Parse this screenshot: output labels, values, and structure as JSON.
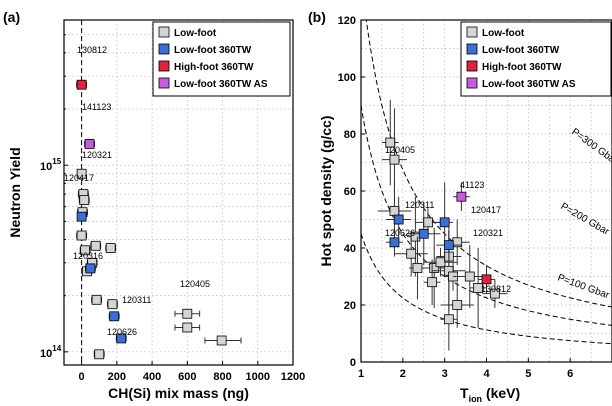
{
  "colors": {
    "Low-foot": "#d4d4d4",
    "Low-foot 360TW": "#3a6fd8",
    "High-foot 360TW": "#e0213f",
    "Low-foot 360TW AS": "#c85ce0"
  },
  "chart_data": [
    {
      "panel": "(a)",
      "type": "scatter",
      "xlabel": "CH(Si) mix mass (ng)",
      "ylabel": "Neutron Yield",
      "xlim": [
        -100,
        1200
      ],
      "ylim": [
        85000000000000.0,
        6000000000000000.0
      ],
      "yscale": "log",
      "x_ticks": [
        "0",
        "200",
        "400",
        "600",
        "800",
        "1000",
        "1200"
      ],
      "y_ticks": [
        {
          "mant": "10",
          "exp": "14"
        },
        {
          "mant": "10",
          "exp": "15"
        }
      ],
      "grid": true,
      "legend": "top-right",
      "vline_x": 0,
      "series": [
        {
          "name": "Low-foot",
          "points": [
            {
              "x": 0,
              "y": 900000000000000.0
            },
            {
              "x": 10,
              "y": 700000000000000.0
            },
            {
              "x": 15,
              "y": 650000000000000.0
            },
            {
              "x": 5,
              "y": 560000000000000.0
            },
            {
              "x": 0,
              "y": 420000000000000.0
            },
            {
              "x": 20,
              "y": 350000000000000.0
            },
            {
              "x": 80,
              "y": 370000000000000.0
            },
            {
              "x": 165,
              "y": 360000000000000.0
            },
            {
              "x": 30,
              "y": 270000000000000.0
            },
            {
              "x": 60,
              "y": 300000000000000.0
            },
            {
              "x": 85,
              "y": 190000000000000.0
            },
            {
              "x": 175,
              "y": 180000000000000.0
            },
            {
              "x": 600,
              "y": 160000000000000.0
            },
            {
              "x": 600,
              "y": 135000000000000.0
            },
            {
              "x": 795,
              "y": 115000000000000.0
            },
            {
              "x": 100,
              "y": 97000000000000.0
            }
          ]
        },
        {
          "name": "Low-foot 360TW",
          "points": [
            {
              "x": 0,
              "y": 530000000000000.0
            },
            {
              "x": 50,
              "y": 280000000000000.0
            },
            {
              "x": 185,
              "y": 155000000000000.0
            },
            {
              "x": 225,
              "y": 118000000000000.0
            }
          ]
        },
        {
          "name": "High-foot 360TW",
          "points": [
            {
              "x": 0,
              "y": 2700000000000000.0
            }
          ]
        },
        {
          "name": "Low-foot 360TW AS",
          "points": [
            {
              "x": 45,
              "y": 1300000000000000.0
            }
          ]
        }
      ],
      "annotations": [
        "130812",
        "141123",
        "120321",
        "120417",
        "120316",
        "120311",
        "120405",
        "120626"
      ]
    },
    {
      "panel": "(b)",
      "type": "scatter",
      "xlabel": "T",
      "xlabel_sub": "ion",
      "xlabel_unit": " (keV)",
      "ylabel": "Hot spot density (g/cc)",
      "xlim": [
        1,
        7
      ],
      "ylim": [
        0,
        120
      ],
      "x_ticks": [
        "1",
        "2",
        "3",
        "4",
        "5",
        "6"
      ],
      "y_ticks": [
        "0",
        "20",
        "40",
        "60",
        "80",
        "100",
        "120"
      ],
      "grid": true,
      "legend": "top-right",
      "series": [
        {
          "name": "Low-foot",
          "points": [
            {
              "x": 1.7,
              "y": 77
            },
            {
              "x": 1.8,
              "y": 71
            },
            {
              "x": 1.8,
              "y": 53
            },
            {
              "x": 2.3,
              "y": 44
            },
            {
              "x": 2.6,
              "y": 49
            },
            {
              "x": 2.2,
              "y": 38
            },
            {
              "x": 2.35,
              "y": 33
            },
            {
              "x": 2.75,
              "y": 33
            },
            {
              "x": 2.9,
              "y": 35
            },
            {
              "x": 2.7,
              "y": 28
            },
            {
              "x": 3.1,
              "y": 37
            },
            {
              "x": 3.1,
              "y": 32
            },
            {
              "x": 3.2,
              "y": 30
            },
            {
              "x": 3.3,
              "y": 42
            },
            {
              "x": 3.6,
              "y": 30
            },
            {
              "x": 3.8,
              "y": 26
            },
            {
              "x": 4.2,
              "y": 24
            },
            {
              "x": 3.3,
              "y": 20
            },
            {
              "x": 3.1,
              "y": 15
            }
          ]
        },
        {
          "name": "Low-foot 360TW",
          "points": [
            {
              "x": 1.8,
              "y": 42
            },
            {
              "x": 1.9,
              "y": 50
            },
            {
              "x": 2.5,
              "y": 45
            },
            {
              "x": 3.0,
              "y": 49
            },
            {
              "x": 3.1,
              "y": 41
            }
          ]
        },
        {
          "name": "High-foot 360TW",
          "points": [
            {
              "x": 4.0,
              "y": 29
            }
          ]
        },
        {
          "name": "Low-foot 360TW AS",
          "points": [
            {
              "x": 3.4,
              "y": 58
            }
          ]
        }
      ],
      "curves": [
        {
          "label": "P=300 Gbar",
          "coef": 135
        },
        {
          "label": "P=200 Gbar",
          "coef": 90
        },
        {
          "label": "P=100 Gbar",
          "coef": 45
        }
      ],
      "annotations": [
        "120405",
        "120311",
        "120417",
        "120626",
        "120321",
        "130812",
        "41123"
      ]
    }
  ]
}
